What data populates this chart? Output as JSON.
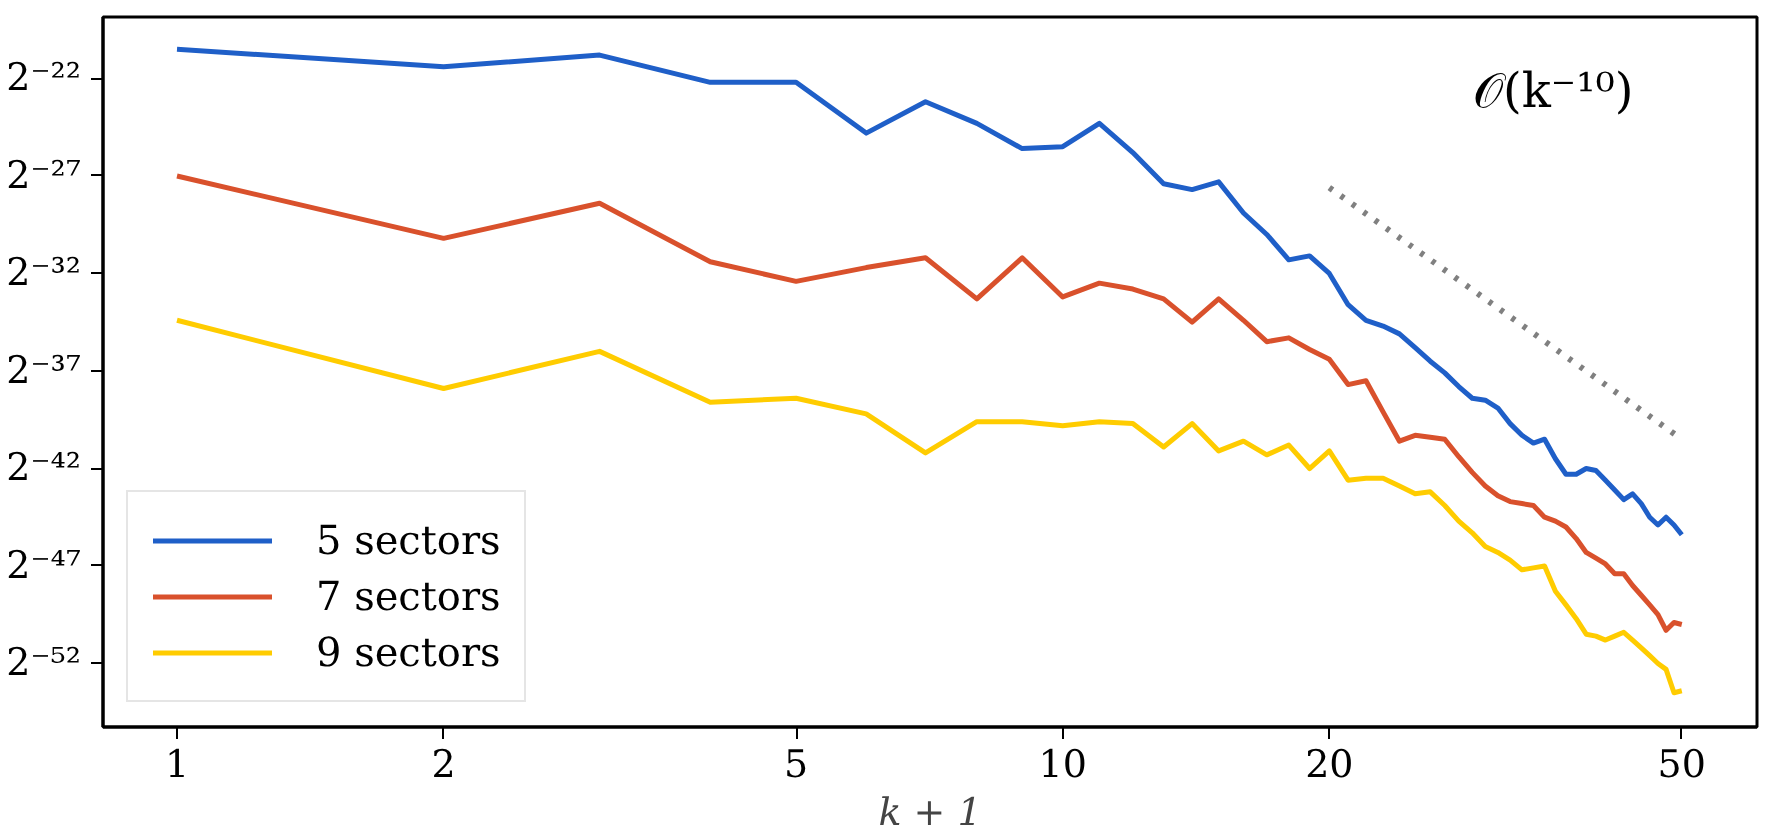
{
  "chart_data": {
    "type": "line",
    "xlabel": "k + 1",
    "log": "xy",
    "grid": false,
    "legend": "bottom left",
    "marker": "none",
    "xlim": [
      0.825,
      60.8
    ],
    "xticks": [
      1,
      2,
      5,
      10,
      20,
      50
    ],
    "ylim": [
      2.32e-17,
      2.12e-06
    ],
    "yticks": [
      {
        "value": 2.384185791015625e-07,
        "label": "2⁻²²"
      },
      {
        "value": 7.450580596923828e-09,
        "label": "2⁻²⁷"
      },
      {
        "value": 2.3283064365386963e-10,
        "label": "2⁻³²"
      },
      {
        "value": 7.275957614183426e-12,
        "label": "2⁻³⁷"
      },
      {
        "value": 2.2737367544323206e-13,
        "label": "2⁻⁴²"
      },
      {
        "value": 7.105427357601002e-15,
        "label": "2⁻⁴⁷"
      },
      {
        "value": 2.220446049250313e-16,
        "label": "2⁻⁵²"
      }
    ],
    "x": [
      1,
      2,
      3,
      4,
      5,
      6,
      7,
      8,
      9,
      10,
      11,
      12,
      13,
      14,
      15,
      16,
      17,
      18,
      19,
      20,
      21,
      22,
      23,
      24,
      25,
      26,
      27,
      28,
      29,
      30,
      31,
      32,
      33,
      34,
      35,
      36,
      37,
      38,
      39,
      40,
      41,
      42,
      43,
      44,
      45,
      46,
      47,
      48,
      49,
      50
    ],
    "series": [
      {
        "name": "5 sectors",
        "color": "#1f5fc8",
        "line_style": "solid",
        "values": [
          6.74e-07,
          3.61e-07,
          5.47e-07,
          2.08e-07,
          2.08e-07,
          3.42e-08,
          1.04e-07,
          4.84e-08,
          1.97e-08,
          2.11e-08,
          4.84e-08,
          1.71e-08,
          5.65e-09,
          4.59e-09,
          6.05e-09,
          2e-09,
          9.31e-10,
          3.78e-10,
          4.35e-10,
          2.33e-10,
          7.68e-11,
          4.41e-11,
          3.59e-11,
          2.72e-11,
          1.67e-11,
          1.03e-11,
          6.79e-12,
          4.18e-12,
          2.76e-12,
          2.57e-12,
          1.95e-12,
          1.12e-12,
          7.39e-13,
          5.6e-13,
          6.43e-13,
          3.21e-13,
          1.85e-13,
          1.85e-13,
          2.27e-13,
          2.12e-13,
          1.5e-13,
          1.06e-13,
          7.5e-14,
          9.23e-14,
          6.53e-14,
          4.02e-14,
          3.05e-14,
          4.02e-14,
          3.05e-14,
          2.15e-14
        ]
      },
      {
        "name": "7 sectors",
        "color": "#d9512c",
        "line_style": "solid",
        "values": [
          7.45e-09,
          8.11e-10,
          2.82e-09,
          3.53e-10,
          1.76e-10,
          2.87e-10,
          4.06e-10,
          9.45e-11,
          4.06e-10,
          1.01e-10,
          1.65e-10,
          1.34e-10,
          9.45e-11,
          4.12e-11,
          9.45e-11,
          4.41e-11,
          2.06e-11,
          2.36e-11,
          1.56e-11,
          1.1e-11,
          4.48e-12,
          5.14e-12,
          1.7e-12,
          6e-13,
          7.39e-13,
          6.89e-13,
          6.43e-13,
          3.45e-13,
          1.98e-13,
          1.22e-13,
          8.62e-14,
          7e-14,
          6.53e-14,
          6.09e-14,
          4.02e-14,
          3.5e-14,
          2.84e-14,
          1.88e-14,
          1.15e-14,
          9.38e-15,
          7.62e-15,
          5.39e-15,
          5.39e-15,
          3.55e-15,
          2.51e-15,
          1.78e-15,
          1.26e-15,
          7.21e-16,
          9.52e-16,
          8.88e-16
        ]
      },
      {
        "name": "9 sectors",
        "color": "#ffcc00",
        "line_style": "solid",
        "values": [
          4.41e-11,
          3.9e-12,
          1.46e-11,
          2.4e-12,
          2.76e-12,
          1.58e-12,
          3.96e-13,
          1.2e-12,
          1.2e-12,
          1.04e-12,
          1.2e-12,
          1.12e-12,
          4.87e-13,
          1.12e-12,
          4.24e-13,
          6e-13,
          3.69e-13,
          5.22e-13,
          2.27e-13,
          4.24e-13,
          1.5e-13,
          1.61e-13,
          1.61e-13,
          1.22e-13,
          9.23e-14,
          9.9e-14,
          6.09e-14,
          3.5e-14,
          2.31e-14,
          1.42e-14,
          1.15e-14,
          8.75e-15,
          6.19e-15,
          6.63e-15,
          7.11e-15,
          2.89e-15,
          1.78e-15,
          1.09e-15,
          6.28e-16,
          5.86e-16,
          5.1e-16,
          5.86e-16,
          6.73e-16,
          5.1e-16,
          3.87e-16,
          2.93e-16,
          2.22e-16,
          1.8e-16,
          7.85e-17,
          8.41e-17
        ]
      },
      {
        "color": "#808080",
        "line_style": "dotted",
        "x": [
          20,
          50
        ],
        "values": [
          4.92e-09,
          6.43e-13
        ]
      }
    ],
    "annotations": [
      "𝒪(k⁻¹⁰)"
    ]
  }
}
